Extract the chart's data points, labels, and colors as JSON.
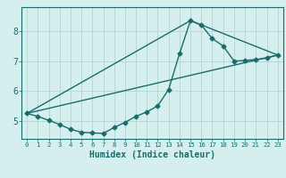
{
  "title": "",
  "xlabel": "Humidex (Indice chaleur)",
  "ylabel": "",
  "bg_color": "#d5efee",
  "line_color": "#1a6b6b",
  "grid_color": "#b8d8d6",
  "xlim": [
    -0.5,
    23.5
  ],
  "ylim": [
    4.4,
    8.8
  ],
  "yticks": [
    5,
    6,
    7,
    8
  ],
  "xticks": [
    0,
    1,
    2,
    3,
    4,
    5,
    6,
    7,
    8,
    9,
    10,
    11,
    12,
    13,
    14,
    15,
    16,
    17,
    18,
    19,
    20,
    21,
    22,
    23
  ],
  "series1_x": [
    0,
    1,
    2,
    3,
    4,
    5,
    6,
    7,
    8,
    9,
    10,
    11,
    12,
    13,
    14,
    15,
    16,
    17,
    18,
    19,
    20,
    21,
    22,
    23
  ],
  "series1_y": [
    5.25,
    5.15,
    5.02,
    4.88,
    4.72,
    4.62,
    4.6,
    4.58,
    4.78,
    4.95,
    5.15,
    5.3,
    5.5,
    6.05,
    7.25,
    8.35,
    8.2,
    7.75,
    7.5,
    7.0,
    7.02,
    7.05,
    7.1,
    7.2
  ],
  "series2_x": [
    0,
    15,
    23
  ],
  "series2_y": [
    5.25,
    8.35,
    7.2
  ],
  "series3_x": [
    0,
    23
  ],
  "series3_y": [
    5.25,
    7.2
  ],
  "marker_size": 2.5,
  "line_width": 1.0
}
